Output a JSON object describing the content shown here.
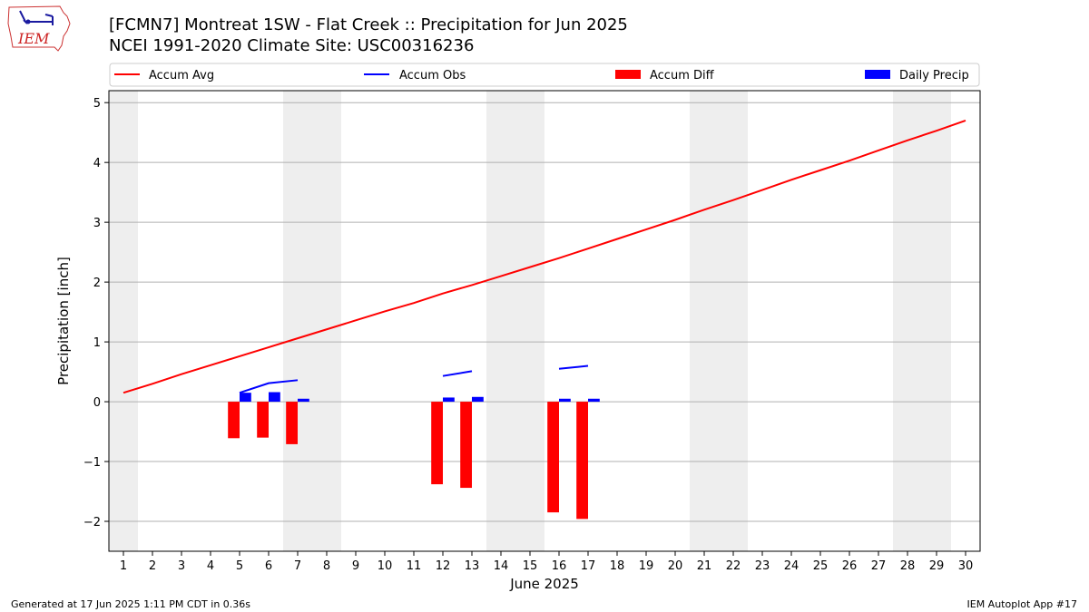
{
  "header": {
    "title": "[FCMN7] Montreat 1SW - Flat Creek :: Precipitation for Jun 2025",
    "subtitle": "NCEI 1991-2020 Climate Site: USC00316236",
    "logo_text": "IEM"
  },
  "footer": {
    "generated": "Generated at 17 Jun 2025 1:11 PM CDT in 0.36s",
    "app": "IEM Autoplot App #17"
  },
  "colors": {
    "accum_avg": "#ff0000",
    "accum_obs": "#0000ff",
    "accum_diff": "#ff0000",
    "daily_precip": "#0000ff",
    "weekend_shade": "#eeeeee",
    "grid": "#b0b0b0"
  },
  "chart_data": {
    "type": "bar",
    "xlabel": "June 2025",
    "ylabel": "Precipitation [inch]",
    "xlim": [
      0.5,
      30.5
    ],
    "ylim": [
      -2.5,
      5.2
    ],
    "yticks": [
      -2,
      -1,
      0,
      1,
      2,
      3,
      4,
      5
    ],
    "ytick_labels": [
      "−2",
      "−1",
      "0",
      "1",
      "2",
      "3",
      "4",
      "5"
    ],
    "xticks": [
      1,
      2,
      3,
      4,
      5,
      6,
      7,
      8,
      9,
      10,
      11,
      12,
      13,
      14,
      15,
      16,
      17,
      18,
      19,
      20,
      21,
      22,
      23,
      24,
      25,
      26,
      27,
      28,
      29,
      30
    ],
    "grid": "horizontal",
    "legend_position": "top",
    "weekend_days": [
      1,
      7,
      8,
      14,
      15,
      21,
      22,
      28,
      29
    ],
    "series": [
      {
        "name": "Accum Avg",
        "type": "line",
        "x": [
          1,
          2,
          3,
          4,
          5,
          6,
          7,
          8,
          9,
          10,
          11,
          12,
          13,
          14,
          15,
          16,
          17,
          18,
          19,
          20,
          21,
          22,
          23,
          24,
          25,
          26,
          27,
          28,
          29,
          30
        ],
        "values": [
          0.15,
          0.3,
          0.46,
          0.61,
          0.76,
          0.91,
          1.06,
          1.21,
          1.36,
          1.51,
          1.65,
          1.81,
          1.95,
          2.1,
          2.25,
          2.4,
          2.56,
          2.72,
          2.88,
          3.04,
          3.21,
          3.37,
          3.54,
          3.71,
          3.87,
          4.03,
          4.2,
          4.37,
          4.53,
          4.7
        ]
      },
      {
        "name": "Accum Obs",
        "type": "line",
        "segments": [
          {
            "x": [
              5,
              6,
              7
            ],
            "values": [
              0.15,
              0.31,
              0.36
            ]
          },
          {
            "x": [
              12,
              13
            ],
            "values": [
              0.43,
              0.51
            ]
          },
          {
            "x": [
              16,
              17
            ],
            "values": [
              0.55,
              0.6
            ]
          }
        ]
      },
      {
        "name": "Accum Diff",
        "type": "bar",
        "x": [
          5,
          6,
          7,
          12,
          13,
          16,
          17
        ],
        "values": [
          -0.61,
          -0.6,
          -0.71,
          -1.38,
          -1.44,
          -1.85,
          -1.96
        ]
      },
      {
        "name": "Daily Precip",
        "type": "bar",
        "x": [
          5,
          6,
          7,
          12,
          13,
          16,
          17
        ],
        "values": [
          0.15,
          0.16,
          0.05,
          0.07,
          0.08,
          0.05,
          0.05
        ]
      }
    ]
  }
}
